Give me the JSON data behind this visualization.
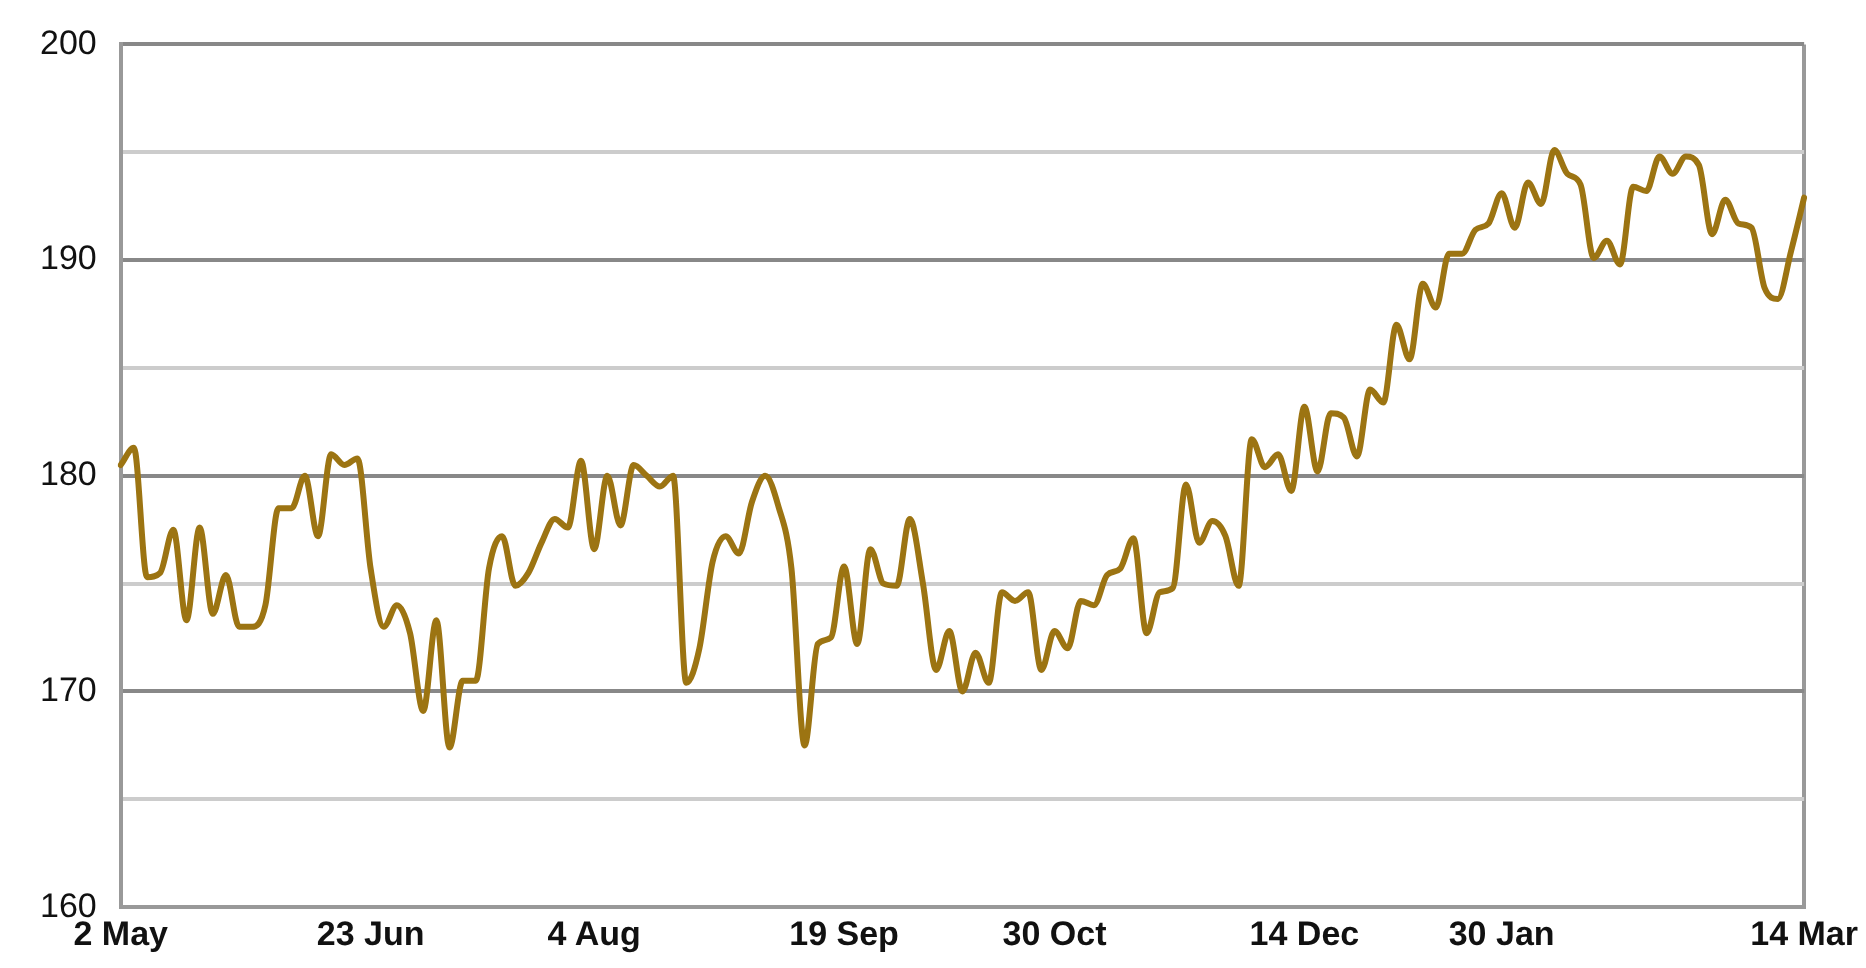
{
  "chart_data": {
    "type": "line",
    "categories": [
      "2 May",
      null,
      null,
      null,
      null,
      null,
      null,
      null,
      null,
      null,
      null,
      null,
      null,
      null,
      null,
      null,
      null,
      null,
      null,
      "23 Jun",
      null,
      null,
      null,
      null,
      null,
      null,
      null,
      null,
      null,
      null,
      null,
      null,
      null,
      null,
      null,
      null,
      "4 Aug",
      null,
      null,
      null,
      null,
      null,
      null,
      null,
      null,
      null,
      null,
      null,
      null,
      null,
      null,
      null,
      null,
      null,
      null,
      "19 Sep",
      null,
      null,
      null,
      null,
      null,
      null,
      null,
      null,
      null,
      null,
      null,
      null,
      null,
      null,
      null,
      "30 Oct",
      null,
      null,
      null,
      null,
      null,
      null,
      null,
      null,
      null,
      null,
      null,
      null,
      null,
      null,
      null,
      null,
      null,
      null,
      "14 Dec",
      null,
      null,
      null,
      null,
      null,
      null,
      null,
      null,
      null,
      null,
      null,
      null,
      null,
      null,
      "30 Jan",
      null,
      null,
      null,
      null,
      null,
      null,
      null,
      null,
      null,
      null,
      null,
      null,
      null,
      null,
      null,
      null,
      null,
      null,
      null,
      null,
      null,
      null,
      "14 Mar"
    ],
    "series": [
      {
        "color": "#9c7412",
        "values": [
          180.5,
          181.3,
          175.3,
          175.5,
          177.5,
          173.3,
          177.6,
          173.6,
          175.4,
          173,
          173,
          174,
          178.5,
          178.5,
          180,
          177.2,
          181,
          180.5,
          180.8,
          175.7,
          173,
          174,
          172.7,
          169.1,
          173.3,
          167.4,
          170.5,
          170.5,
          175.7,
          177.2,
          174.9,
          175.5,
          176.9,
          178,
          177.6,
          180.7,
          176.6,
          180,
          177.7,
          180.5,
          180,
          179.5,
          180,
          170.4,
          172,
          176,
          177.2,
          176.4,
          178.8,
          180,
          178.6,
          175.7,
          167.5,
          172.2,
          172.5,
          175.8,
          172.2,
          176.6,
          175,
          174.9,
          178,
          175,
          171,
          172.8,
          170,
          171.8,
          170.4,
          174.6,
          174.2,
          174.6,
          171,
          172.8,
          172,
          174.2,
          174,
          175.4,
          175.7,
          177.1,
          172.7,
          174.6,
          174.8,
          179.6,
          176.9,
          177.9,
          177.2,
          174.9,
          181.7,
          180.4,
          181,
          179.3,
          183.2,
          180.2,
          182.9,
          182.7,
          180.9,
          184,
          183.4,
          187,
          185.4,
          188.9,
          187.8,
          190.3,
          190.3,
          191.4,
          191.7,
          193.1,
          191.5,
          193.6,
          192.6,
          195.1,
          194,
          193.5,
          190.1,
          190.9,
          189.8,
          193.4,
          193.2,
          194.8,
          194,
          194.8,
          194.4,
          191.2,
          192.8,
          191.7,
          191.5,
          188.7,
          188.2,
          190.4,
          192.9
        ]
      }
    ],
    "ylim": [
      160,
      200
    ],
    "yticks": [
      160,
      {
        "value": 165,
        "label": null
      },
      170,
      {
        "value": 175,
        "label": null
      },
      180,
      {
        "value": 185,
        "label": null
      },
      190,
      {
        "value": 195,
        "label": null
      },
      200
    ],
    "grid": "y",
    "marker": "none",
    "line_style": "solid"
  }
}
